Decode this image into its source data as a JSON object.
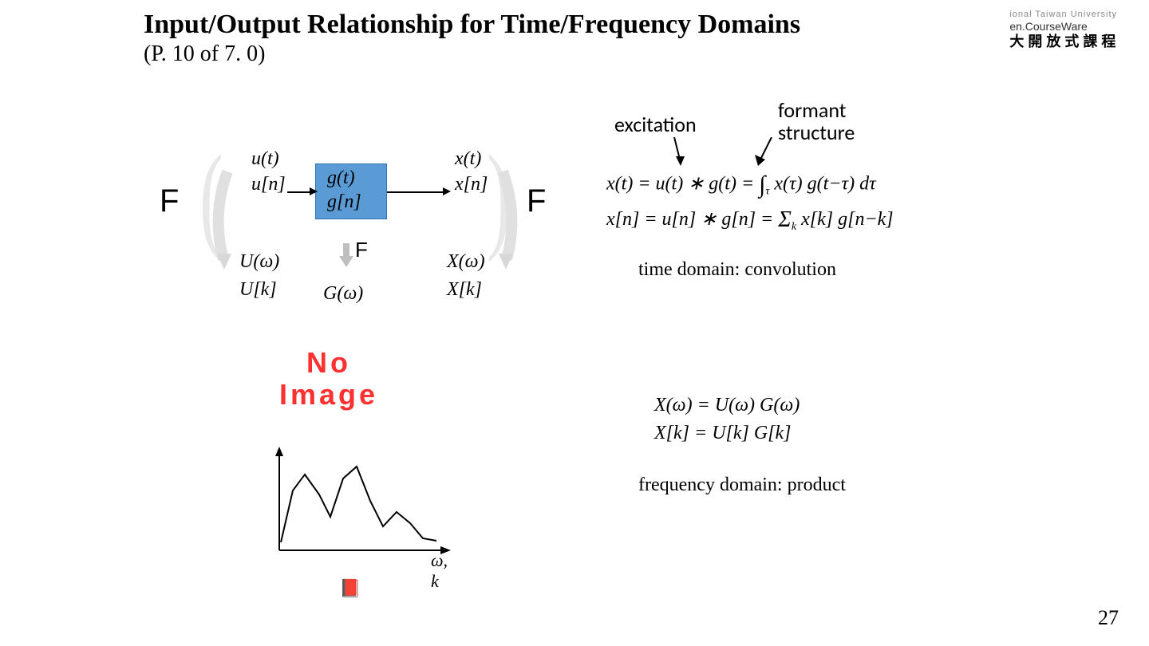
{
  "header": {
    "title": "Input/Output Relationship for Time/Frequency Domains",
    "subtitle": "(P. 10 of 7. 0)"
  },
  "logo": {
    "line1": "ional Taiwan University",
    "line2": "en.CourseWare",
    "line3": "大 開 放 式 課 程"
  },
  "F_labels": {
    "left": "F",
    "right": "F",
    "small": "F"
  },
  "signals": {
    "u_t": "u(t)",
    "u_n": "u[n]",
    "g_t": "g(t)",
    "g_n": "g[n]",
    "x_t": "x(t)",
    "x_n": "x[n]",
    "U_w": "U(ω)",
    "U_k": "U[k]",
    "G_w": "G(ω)",
    "X_w": "X(ω)",
    "X_k": "X[k]",
    "Gk_hidden": "G[k]"
  },
  "annotations": {
    "excitation": "excitation",
    "formant1": "formant",
    "formant2": "structure"
  },
  "equations": {
    "conv_t": "x(t) = u(t) ∗ g(t) = ∫ x(τ) g(t−τ) dτ",
    "conv_n": "x[n] = u[n] ∗ g[n] = Σ x[k] g[n−k]",
    "prod_w": "X(ω) = U(ω) G(ω)",
    "prod_k": "X[k] = U[k] G[k]",
    "int_sub": "τ",
    "sum_sub": "k"
  },
  "notes": {
    "time": "time domain: convolution",
    "freq": "frequency domain: product"
  },
  "no_image": {
    "line1": "No",
    "line2": "Image"
  },
  "axis": {
    "label": "ω, k"
  },
  "page_number": "27",
  "colors": {
    "box_fill": "#5b9bd5",
    "box_border": "#2e75b6",
    "red_text": "#ff3030",
    "paren_gray": "#e8e8e8",
    "black": "#000000",
    "bg": "#ffffff"
  },
  "spectrum": {
    "points": [
      [
        0,
        120
      ],
      [
        15,
        55
      ],
      [
        30,
        35
      ],
      [
        48,
        60
      ],
      [
        62,
        88
      ],
      [
        78,
        40
      ],
      [
        95,
        25
      ],
      [
        112,
        68
      ],
      [
        128,
        100
      ],
      [
        145,
        82
      ],
      [
        162,
        96
      ],
      [
        178,
        115
      ],
      [
        195,
        118
      ]
    ],
    "axis_color": "#000000",
    "line_color": "#000000",
    "line_width": 2
  }
}
